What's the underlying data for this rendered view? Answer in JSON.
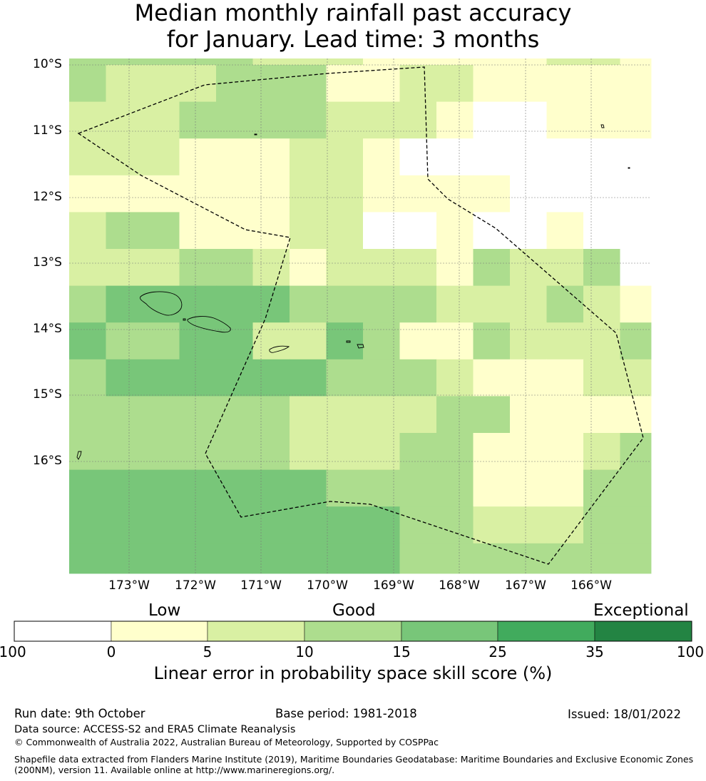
{
  "title": {
    "line1": "Median monthly rainfall past accuracy",
    "line2": "for January. Lead time: 3 months"
  },
  "map": {
    "lat_labels": [
      "10°S",
      "11°S",
      "12°S",
      "13°S",
      "14°S",
      "15°S",
      "16°S"
    ],
    "lon_labels": [
      "173°W",
      "172°W",
      "171°W",
      "170°W",
      "169°W",
      "168°W",
      "167°W",
      "166°W"
    ],
    "skill_grid_class": [
      [
        3,
        3,
        3,
        3,
        3,
        2,
        2,
        2,
        1,
        1,
        1,
        1,
        1,
        2,
        2,
        1
      ],
      [
        3,
        2,
        2,
        2,
        3,
        3,
        3,
        1,
        1,
        2,
        2,
        1,
        1,
        1,
        1,
        1
      ],
      [
        2,
        2,
        2,
        3,
        3,
        3,
        3,
        2,
        2,
        2,
        1,
        0,
        0,
        1,
        1,
        1
      ],
      [
        2,
        2,
        2,
        1,
        1,
        1,
        2,
        2,
        1,
        0,
        0,
        0,
        0,
        0,
        0,
        0
      ],
      [
        1,
        1,
        1,
        1,
        1,
        1,
        2,
        2,
        1,
        1,
        1,
        1,
        0,
        0,
        0,
        0
      ],
      [
        2,
        3,
        3,
        1,
        1,
        1,
        2,
        2,
        0,
        0,
        1,
        0,
        0,
        1,
        0,
        0
      ],
      [
        2,
        2,
        2,
        3,
        3,
        2,
        1,
        2,
        2,
        2,
        1,
        3,
        2,
        2,
        3,
        0
      ],
      [
        3,
        4,
        4,
        4,
        4,
        4,
        3,
        3,
        3,
        3,
        2,
        2,
        2,
        3,
        2,
        1
      ],
      [
        4,
        3,
        3,
        4,
        4,
        2,
        2,
        4,
        3,
        1,
        1,
        3,
        2,
        2,
        2,
        3
      ],
      [
        3,
        4,
        4,
        4,
        4,
        4,
        4,
        3,
        3,
        3,
        2,
        1,
        1,
        1,
        2,
        2
      ],
      [
        3,
        3,
        3,
        3,
        3,
        3,
        2,
        2,
        2,
        2,
        3,
        3,
        1,
        1,
        1,
        1
      ],
      [
        3,
        3,
        3,
        3,
        3,
        3,
        2,
        2,
        2,
        3,
        3,
        1,
        1,
        1,
        2,
        3
      ],
      [
        4,
        4,
        4,
        4,
        4,
        4,
        4,
        3,
        3,
        3,
        3,
        1,
        1,
        1,
        3,
        3
      ],
      [
        4,
        4,
        4,
        4,
        4,
        4,
        4,
        4,
        4,
        3,
        3,
        2,
        2,
        2,
        3,
        3
      ],
      [
        4,
        4,
        4,
        4,
        4,
        4,
        4,
        4,
        4,
        3,
        3,
        3,
        3,
        3,
        3,
        3
      ],
      [
        4,
        4,
        4,
        4,
        4,
        4,
        4,
        4,
        4,
        3,
        3,
        3,
        3,
        3,
        3,
        3
      ]
    ]
  },
  "colorbar": {
    "categories": [
      "Low",
      "Good",
      "Exceptional"
    ],
    "ticks": [
      "-100",
      "0",
      "5",
      "10",
      "15",
      "25",
      "35",
      "100"
    ],
    "colors": [
      "#ffffff",
      "#ffffcc",
      "#d9f0a3",
      "#addd8e",
      "#78c679",
      "#41ab5d",
      "#238443"
    ],
    "title": "Linear error in probability space skill score (%)"
  },
  "footer": {
    "run_date": "Run date: 9th October",
    "base_period": "Base period: 1981-2018",
    "issued": "Issued: 18/01/2022",
    "data_source": "Data source: ACCESS-S2 and ERA5 Climate Reanalysis",
    "copyright": "© Commonwealth of Australia 2022, Australian Bureau of Meteorology, Supported by COSPPac",
    "shapefile_line1": "Shapefile data extracted from Flanders Marine Institute (2019), Maritime Boundaries Geodatabase: Maritime Boundaries and Exclusive Economic Zones",
    "shapefile_line2": "(200NM), version 11. Available online at http://www.marineregions.org/."
  }
}
